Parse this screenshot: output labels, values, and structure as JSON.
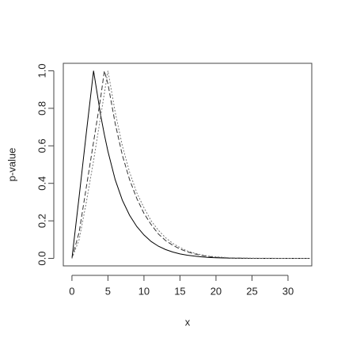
{
  "chart_data": {
    "type": "line",
    "xlabel": "x",
    "ylabel": "p-value",
    "x": [
      0,
      1,
      2,
      3,
      4,
      4.5,
      5,
      6,
      7,
      8,
      9,
      10,
      11,
      12,
      13,
      14,
      15,
      16,
      17,
      18,
      19,
      20,
      22,
      25,
      30,
      33
    ],
    "series": [
      {
        "color": "#000000",
        "dash": "solid",
        "values": [
          0,
          0.33,
          0.67,
          1.0,
          0.76,
          0.66,
          0.57,
          0.42,
          0.31,
          0.23,
          0.17,
          0.125,
          0.09,
          0.065,
          0.047,
          0.034,
          0.024,
          0.017,
          0.012,
          0.008,
          0.005,
          0.003,
          0.001,
          0,
          0,
          0
        ]
      },
      {
        "color": "#333333",
        "dash": "dashed",
        "values": [
          0,
          0.14,
          0.38,
          0.62,
          0.86,
          1.0,
          0.93,
          0.72,
          0.55,
          0.42,
          0.32,
          0.24,
          0.18,
          0.13,
          0.095,
          0.07,
          0.05,
          0.035,
          0.024,
          0.016,
          0.01,
          0.006,
          0.002,
          0,
          0,
          0
        ]
      },
      {
        "color": "#777777",
        "dash": "dotted",
        "values": [
          0,
          0.1,
          0.3,
          0.52,
          0.76,
          0.88,
          1.0,
          0.78,
          0.6,
          0.46,
          0.35,
          0.27,
          0.2,
          0.15,
          0.11,
          0.08,
          0.058,
          0.04,
          0.028,
          0.019,
          0.012,
          0.008,
          0.003,
          0.001,
          0,
          0
        ]
      }
    ],
    "xlim": [
      -1.2,
      33.3
    ],
    "ylim": [
      -0.04,
      1.04
    ],
    "xticks": [
      0,
      5,
      10,
      15,
      20,
      25,
      30
    ],
    "yticks": [
      {
        "value": 0,
        "label": "0.0"
      },
      {
        "value": 0.2,
        "label": "0.2"
      },
      {
        "value": 0.4,
        "label": "0.4"
      },
      {
        "value": 0.6,
        "label": "0.6"
      },
      {
        "value": 0.8,
        "label": "0.8"
      },
      {
        "value": 1,
        "label": "1.0"
      }
    ],
    "grid": false
  }
}
